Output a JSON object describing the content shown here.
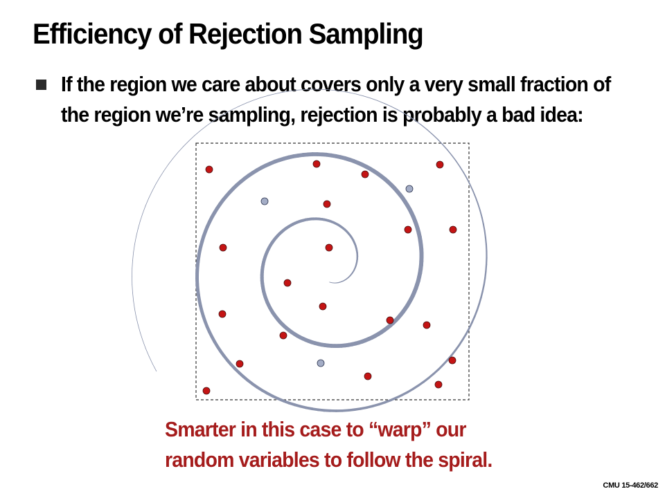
{
  "slide": {
    "title": "Efficiency of Rejection Sampling",
    "bullet": {
      "line1": "If the region we care about covers only a very small fraction of",
      "line2": "the region we’re sampling, rejection is probably a bad idea:"
    },
    "callout": {
      "line1": "Smarter in this case to “warp” our",
      "line2": "random variables to follow the spiral."
    },
    "footer": "CMU 15-462/662"
  },
  "colors": {
    "spiral": "#8a93ad",
    "rejected_sample": "#c41414",
    "accepted_sample": "#a4adc6",
    "callout": "#a51c1c"
  }
}
